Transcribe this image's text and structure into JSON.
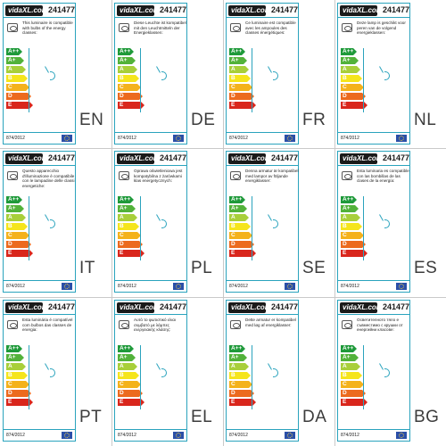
{
  "brand": "vidaXL.com",
  "product_code": "241477",
  "regulation": "874/2012",
  "colors": {
    "frame": "#2aa3bd",
    "energy_classes": [
      "#1f9a3a",
      "#52b23a",
      "#a8cf3a",
      "#f5e51c",
      "#f4b21b",
      "#ec6a1e",
      "#d9261c"
    ]
  },
  "energy_classes": [
    "A++",
    "A+",
    "A",
    "B",
    "C",
    "D",
    "E"
  ],
  "labels": [
    {
      "lang": "EN",
      "text": "This luminaire is compatible with bulbs of the energy classes:"
    },
    {
      "lang": "DE",
      "text": "Diese Leuchte ist kompatibel mit den Leuchtmitteln der Energieklassen:"
    },
    {
      "lang": "FR",
      "text": "Ce luminaire est compatible avec les ampoules des classes énergétiques:"
    },
    {
      "lang": "NL",
      "text": "Deze lamp is geschikt voor peren van de volgend energieklassen:"
    },
    {
      "lang": "IT",
      "text": "Questo apparecchio d'illuminazione è compatibile con le lampadine delle classi energetiche:"
    },
    {
      "lang": "PL",
      "text": "Oprawa oświetleniowa jest kompatybilna z żarówkami klas energetycznych:"
    },
    {
      "lang": "SE",
      "text": "Denna armatur är kompatibel med lampor av följande energiklasser:"
    },
    {
      "lang": "ES",
      "text": "Esta luminaria es compatible con las bombillas de las clases de la energía:"
    },
    {
      "lang": "PT",
      "text": "Esta luminária é compatível com bulbos das classes de energia:"
    },
    {
      "lang": "EL",
      "text": "Αυτό το φωτιστικό είναι συμβατό με λάμπες ενεργειακής κλάσης:"
    },
    {
      "lang": "DA",
      "text": "Dette armatur er kompatibel med løg af energiklasser:"
    },
    {
      "lang": "BG",
      "text": "Осветителното тяло е съвместимо с крушки от енергийни класове:"
    }
  ]
}
